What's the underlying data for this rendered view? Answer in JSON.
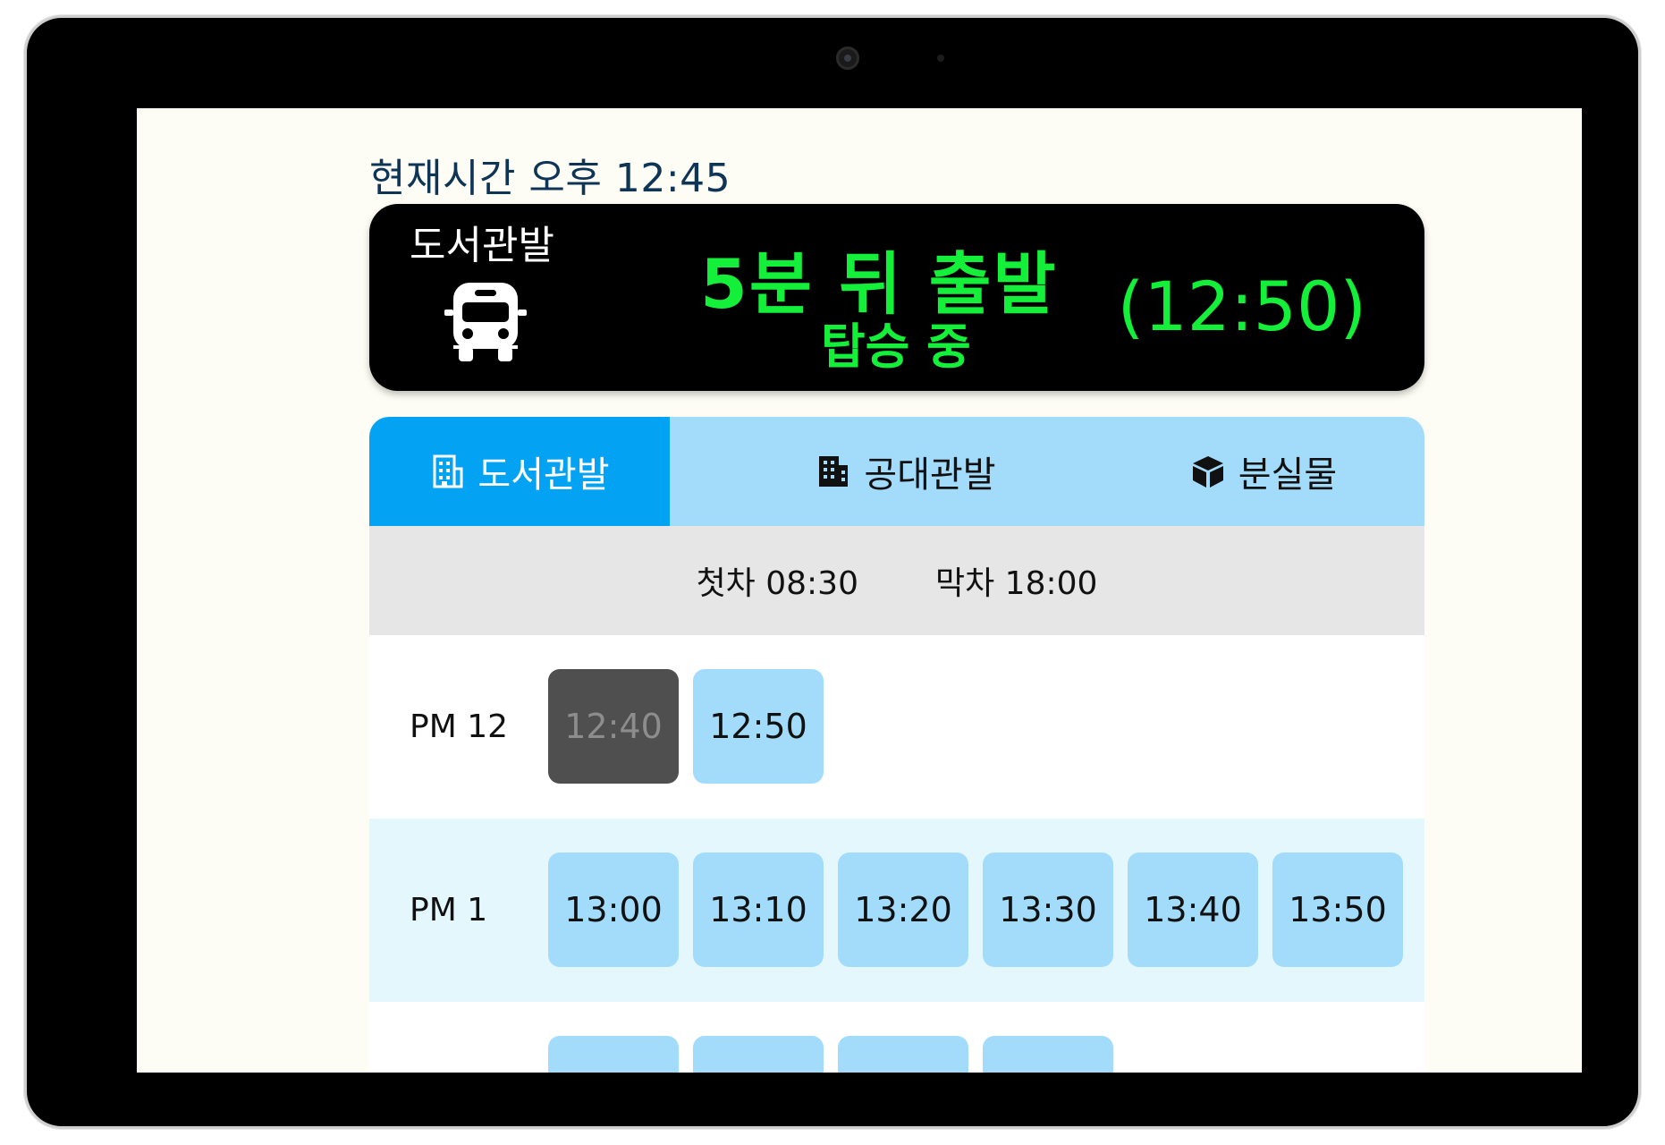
{
  "header": {
    "current_time": "현재시간 오후 12:45"
  },
  "banner": {
    "stop": "도서관발",
    "countdown": "5분 뒤 출발",
    "status": "탑승 중",
    "departure_time": "(12:50)",
    "icon": "bus-icon",
    "accent_color": "#14ef3a"
  },
  "tabs": [
    {
      "label": "도서관발",
      "icon": "building-outline-icon",
      "active": true
    },
    {
      "label": "공대관발",
      "icon": "building-filled-icon",
      "active": false
    },
    {
      "label": "분실물",
      "icon": "box-icon",
      "active": false
    }
  ],
  "schedule": {
    "first": "첫차 08:30",
    "last": "막차 18:00",
    "hours": [
      {
        "label": "PM 12",
        "times": [
          "12:40",
          "12:50"
        ],
        "past": [
          "12:40"
        ]
      },
      {
        "label": "PM 1",
        "times": [
          "13:00",
          "13:10",
          "13:20",
          "13:30",
          "13:40",
          "13:50"
        ],
        "past": []
      },
      {
        "label": "",
        "times": [
          "",
          "",
          "",
          ""
        ],
        "past": []
      }
    ]
  },
  "colors": {
    "tab_active": "#03a2f3",
    "tab_bar": "#a3dcfb",
    "slot": "#a3dcfb",
    "slot_past": "#4f4f4f",
    "row_alt": "#e3f7fd"
  }
}
